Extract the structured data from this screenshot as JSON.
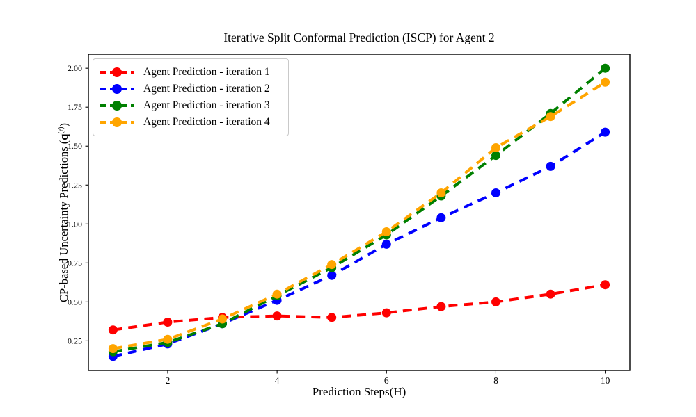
{
  "chart_data": {
    "type": "line",
    "title": "Iterative Split Conformal Prediction (ISCP) for Agent 2",
    "xlabel": "Prediction Steps(H)",
    "ylabel_parts": {
      "prefix": "CP-based Uncertainty Predictions (",
      "q": "q",
      "sup": "(r)",
      "suffix": ")"
    },
    "x": [
      1,
      2,
      3,
      4,
      5,
      6,
      7,
      8,
      9,
      10
    ],
    "xticks": [
      2,
      4,
      6,
      8,
      10
    ],
    "yticks": [
      0.25,
      0.5,
      0.75,
      1.0,
      1.25,
      1.5,
      1.75,
      2.0
    ],
    "xlim": [
      0.55,
      10.45
    ],
    "ylim": [
      0.06,
      2.09
    ],
    "grid": false,
    "legend_position": "upper left",
    "line_style": "dashed",
    "marker": "circle",
    "series": [
      {
        "name": "Agent Prediction - iteration 1",
        "color": "#ff0000",
        "values": [
          0.32,
          0.37,
          0.4,
          0.41,
          0.4,
          0.43,
          0.47,
          0.5,
          0.55,
          0.61
        ]
      },
      {
        "name": "Agent Prediction - iteration 2",
        "color": "#0000ff",
        "values": [
          0.15,
          0.23,
          0.36,
          0.51,
          0.67,
          0.87,
          1.04,
          1.2,
          1.37,
          1.59
        ]
      },
      {
        "name": "Agent Prediction - iteration 3",
        "color": "#008000",
        "values": [
          0.18,
          0.24,
          0.36,
          0.54,
          0.72,
          0.93,
          1.18,
          1.44,
          1.71,
          2.0
        ]
      },
      {
        "name": "Agent Prediction - iteration 4",
        "color": "#ffa500",
        "values": [
          0.2,
          0.26,
          0.39,
          0.55,
          0.74,
          0.95,
          1.2,
          1.49,
          1.69,
          1.91
        ]
      }
    ]
  }
}
